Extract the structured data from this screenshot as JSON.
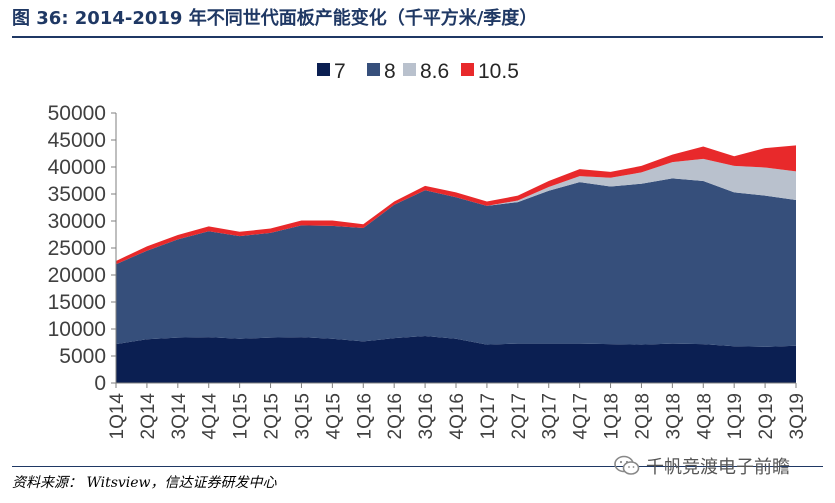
{
  "figure": {
    "title": "图 36:  2014-2019 年不同世代面板产能变化（千平方米/季度）",
    "source": "资料来源： Witsview，信达证券研发中心",
    "watermark": "千帆竞渡电子前瞻"
  },
  "chart_data": {
    "type": "area",
    "stacked": true,
    "title": "",
    "xlabel": "",
    "ylabel": "",
    "ylim": [
      0,
      50000
    ],
    "yticks": [
      0,
      5000,
      10000,
      15000,
      20000,
      25000,
      30000,
      35000,
      40000,
      45000,
      50000
    ],
    "grid": false,
    "legend_position": "top",
    "x": [
      "1Q14",
      "2Q14",
      "3Q14",
      "4Q14",
      "1Q15",
      "2Q15",
      "3Q15",
      "4Q15",
      "1Q16",
      "2Q16",
      "3Q16",
      "4Q16",
      "1Q17",
      "2Q17",
      "3Q17",
      "4Q17",
      "1Q18",
      "2Q18",
      "3Q18",
      "4Q18",
      "1Q19",
      "2Q19",
      "3Q19"
    ],
    "series": [
      {
        "name": "7",
        "color": "#0b1f52",
        "values": [
          7200,
          8100,
          8400,
          8500,
          8200,
          8400,
          8500,
          8200,
          7700,
          8300,
          8700,
          8200,
          7100,
          7300,
          7300,
          7300,
          7200,
          7100,
          7300,
          7200,
          6800,
          6700,
          6900
        ]
      },
      {
        "name": "8",
        "color": "#364f7b",
        "values": [
          14800,
          16400,
          18200,
          19600,
          19000,
          19400,
          20700,
          20900,
          21000,
          24700,
          27000,
          26200,
          25700,
          26200,
          28300,
          29900,
          29200,
          29800,
          30600,
          30200,
          28500,
          28000,
          27000
        ]
      },
      {
        "name": "8.6",
        "color": "#b9c1cd",
        "values": [
          0,
          0,
          0,
          0,
          0,
          0,
          0,
          0,
          0,
          0,
          0,
          0,
          0,
          300,
          700,
          1100,
          1600,
          2100,
          3000,
          4100,
          4900,
          5200,
          5300
        ]
      },
      {
        "name": "10.5",
        "color": "#e8292b",
        "values": [
          600,
          800,
          800,
          900,
          800,
          800,
          900,
          1000,
          700,
          600,
          800,
          900,
          800,
          900,
          1100,
          1300,
          1100,
          1200,
          1400,
          2300,
          1800,
          3600,
          4800
        ]
      }
    ]
  }
}
